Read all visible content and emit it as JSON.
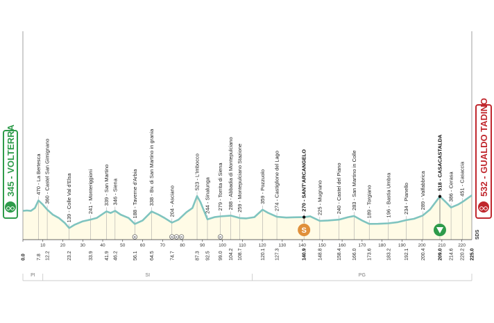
{
  "start": {
    "name": "VOLTERRA",
    "altitude": "345",
    "label": "345 - VOLTERRA"
  },
  "finish": {
    "name": "GUALDO TADINO",
    "altitude": "532",
    "label": "532 - GUALDO TADINO"
  },
  "brand": "SDS",
  "colors": {
    "start": "#2e9b4a",
    "finish": "#c0272d",
    "profile": "#7fc4bf",
    "fill": "#fffbe6",
    "sprint": "#e0903a",
    "gpm": "#2e9b4a"
  },
  "altitude_scale": [
    "1000",
    "500",
    "0"
  ],
  "chart_data": {
    "type": "area",
    "xlabel": "",
    "ylabel": "",
    "xlim": [
      0,
      225
    ],
    "ylim": [
      0,
      1000
    ],
    "x_ticks": [
      0,
      10,
      20,
      30,
      40,
      50,
      60,
      70,
      80,
      90,
      100,
      110,
      120,
      130,
      140,
      150,
      160,
      170,
      180,
      190,
      200,
      210,
      220
    ],
    "profile": [
      [
        0,
        345
      ],
      [
        2,
        350
      ],
      [
        4,
        345
      ],
      [
        6,
        380
      ],
      [
        7.8,
        470
      ],
      [
        10,
        420
      ],
      [
        12.2,
        360
      ],
      [
        15,
        300
      ],
      [
        18,
        260
      ],
      [
        21,
        200
      ],
      [
        23.2,
        139
      ],
      [
        26,
        180
      ],
      [
        30,
        220
      ],
      [
        33.9,
        241
      ],
      [
        37,
        260
      ],
      [
        41.9,
        339
      ],
      [
        44,
        320
      ],
      [
        46.2,
        346
      ],
      [
        49,
        300
      ],
      [
        53,
        260
      ],
      [
        56.1,
        188
      ],
      [
        60,
        230
      ],
      [
        64.5,
        338
      ],
      [
        68,
        300
      ],
      [
        71,
        260
      ],
      [
        74.7,
        204
      ],
      [
        78,
        240
      ],
      [
        82,
        330
      ],
      [
        85,
        380
      ],
      [
        87.3,
        523
      ],
      [
        89,
        450
      ],
      [
        92.5,
        244
      ],
      [
        96,
        270
      ],
      [
        99,
        279
      ],
      [
        104.2,
        288
      ],
      [
        108.7,
        259
      ],
      [
        112,
        255
      ],
      [
        116,
        270
      ],
      [
        120.1,
        359
      ],
      [
        123,
        320
      ],
      [
        127.3,
        274
      ],
      [
        132,
        265
      ],
      [
        136,
        268
      ],
      [
        140.9,
        270
      ],
      [
        144,
        280
      ],
      [
        148.8,
        225
      ],
      [
        153,
        230
      ],
      [
        158.4,
        240
      ],
      [
        163,
        270
      ],
      [
        166,
        283
      ],
      [
        170,
        230
      ],
      [
        173.6,
        189
      ],
      [
        178,
        190
      ],
      [
        183.2,
        196
      ],
      [
        188,
        210
      ],
      [
        192.1,
        234
      ],
      [
        196,
        250
      ],
      [
        200.4,
        289
      ],
      [
        204,
        360
      ],
      [
        209,
        518
      ],
      [
        212,
        450
      ],
      [
        214.6,
        386
      ],
      [
        218,
        420
      ],
      [
        220.2,
        451
      ],
      [
        225,
        532
      ]
    ],
    "waypoints": [
      {
        "km": 7.8,
        "alt": 470,
        "name": "470 - La Bertesca",
        "km_label": "7.8"
      },
      {
        "km": 12.2,
        "alt": 360,
        "name": "360 - Castel San Gimignano",
        "km_label": "12.2"
      },
      {
        "km": 23.2,
        "alt": 139,
        "name": "139 - Colle Val d'Elsa",
        "km_label": "23.2"
      },
      {
        "km": 33.9,
        "alt": 241,
        "name": "241 - Monteriggioni",
        "km_label": "33.9"
      },
      {
        "km": 41.9,
        "alt": 339,
        "name": "339 - San Martino",
        "km_label": "41.9"
      },
      {
        "km": 46.2,
        "alt": 346,
        "name": "346 - Siena",
        "km_label": "46.2"
      },
      {
        "km": 56.1,
        "alt": 188,
        "name": "188 - Taverne d'Arbia",
        "km_label": "56.1"
      },
      {
        "km": 64.5,
        "alt": 338,
        "name": "338 - Bv. di San Martino in grania",
        "km_label": "64.5"
      },
      {
        "km": 74.7,
        "alt": 204,
        "name": "204 - Asciano",
        "km_label": "74.7"
      },
      {
        "km": 87.3,
        "alt": 523,
        "name": "523 - L'Imbocco",
        "km_label": "87.3"
      },
      {
        "km": 92.5,
        "alt": 244,
        "name": "244 - Sinalunga",
        "km_label": "92.5"
      },
      {
        "km": 99.0,
        "alt": 279,
        "name": "279 - Torrita di Siena",
        "km_label": "99.0"
      },
      {
        "km": 104.2,
        "alt": 288,
        "name": "288 - Abbadia di Montepulciano",
        "km_label": "104.2"
      },
      {
        "km": 108.7,
        "alt": 259,
        "name": "259 - Montepulciano Stazione",
        "km_label": "108.7"
      },
      {
        "km": 120.1,
        "alt": 359,
        "name": "359 - Pozzuolo",
        "km_label": "120.1"
      },
      {
        "km": 127.3,
        "alt": 274,
        "name": "274 - Castiglione del Lago",
        "km_label": "127.3"
      },
      {
        "km": 140.9,
        "alt": 270,
        "name": "270 - SANT'ARCANGELO",
        "km_label": "140.9",
        "bold": true
      },
      {
        "km": 148.8,
        "alt": 225,
        "name": "225 - Mugnano",
        "km_label": "148.8"
      },
      {
        "km": 158.4,
        "alt": 240,
        "name": "240 - Castel del Piano",
        "km_label": "158.4"
      },
      {
        "km": 166.0,
        "alt": 283,
        "name": "283 - San Martino in Colle",
        "km_label": "166.0"
      },
      {
        "km": 173.6,
        "alt": 189,
        "name": "189 - Torgiano",
        "km_label": "173.6"
      },
      {
        "km": 183.2,
        "alt": 196,
        "name": "196 - Bastia Umbra",
        "km_label": "183.2"
      },
      {
        "km": 192.1,
        "alt": 234,
        "name": "234 - Pianello",
        "km_label": "192.1"
      },
      {
        "km": 200.4,
        "alt": 289,
        "name": "289 - Valfabbrica",
        "km_label": "200.4"
      },
      {
        "km": 209.0,
        "alt": 518,
        "name": "518 - CASACASTALDA",
        "km_label": "209.0",
        "bold": true
      },
      {
        "km": 214.6,
        "alt": 386,
        "name": "386 - Cerasa",
        "km_label": "214.6"
      },
      {
        "km": 220.2,
        "alt": 451,
        "name": "451 - Casaccia",
        "km_label": "220.2"
      }
    ],
    "start_km": {
      "km": 0,
      "label": "0.0"
    },
    "finish_km": {
      "km": 225,
      "label": "225.0"
    },
    "sprint": {
      "km": 140.9,
      "symbol": "S"
    },
    "kom": {
      "km": 209.0
    },
    "feed_markers": [
      {
        "km": 56.1,
        "symbol": "R"
      },
      {
        "km": 74.7,
        "symbol": "R"
      },
      {
        "km": 77,
        "symbol": "R"
      },
      {
        "km": 79.5,
        "symbol": "R"
      },
      {
        "km": 99.0,
        "symbol": "R"
      }
    ],
    "regions": [
      {
        "label": "PI",
        "from": 0,
        "to": 10
      },
      {
        "label": "SI",
        "from": 10,
        "to": 115
      },
      {
        "label": "PG",
        "from": 115,
        "to": 225
      }
    ]
  }
}
